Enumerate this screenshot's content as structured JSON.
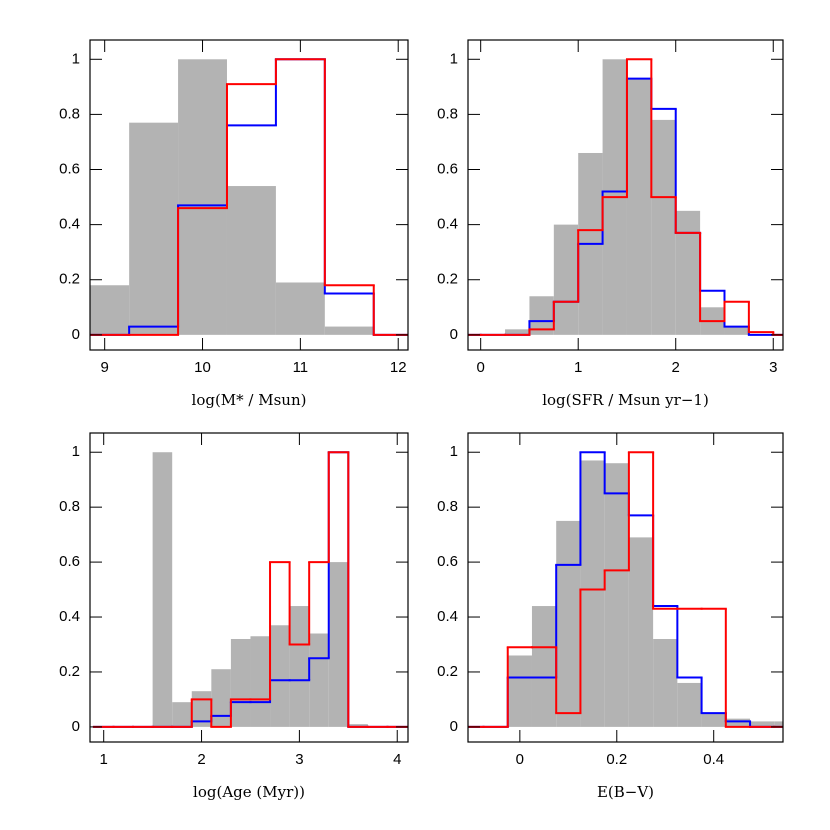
{
  "chart_data": [
    {
      "type": "histogram",
      "xlabel": "log(M* / Msun)",
      "bins": [
        8.75,
        9.25,
        9.75,
        10.25,
        10.75,
        11.25,
        11.75,
        12.25
      ],
      "series": [
        {
          "color": "#b3b3b3",
          "values": [
            0.18,
            0.77,
            1.0,
            0.54,
            0.19,
            0.03,
            0
          ]
        },
        {
          "color": "#0000ff",
          "values": [
            0,
            0.03,
            0.47,
            0.76,
            1.0,
            0.15,
            0
          ]
        },
        {
          "color": "#ff0000",
          "values": [
            0,
            0,
            0.46,
            0.91,
            1.0,
            0.18,
            0
          ]
        }
      ],
      "xlim": [
        8.85,
        12.1
      ],
      "xticks": [
        9,
        10,
        11,
        12
      ],
      "ylim": [
        -0.055,
        1.07
      ],
      "yticks": [
        0,
        0.2,
        0.4,
        0.6,
        0.8,
        1
      ]
    },
    {
      "type": "histogram",
      "xlabel": "log(SFR / Msun yr−1)",
      "bins": [
        -0.25,
        0,
        0.25,
        0.5,
        0.75,
        1.0,
        1.25,
        1.5,
        1.75,
        2.0,
        2.25,
        2.5,
        2.75,
        3.0,
        3.25
      ],
      "series": [
        {
          "color": "#b3b3b3",
          "values": [
            0,
            0,
            0.02,
            0.14,
            0.4,
            0.66,
            1.0,
            0.93,
            0.78,
            0.45,
            0.1,
            0.03,
            0,
            0
          ]
        },
        {
          "color": "#0000ff",
          "values": [
            0,
            0,
            0,
            0.05,
            0.12,
            0.33,
            0.52,
            0.93,
            0.82,
            0.37,
            0.16,
            0.03,
            0,
            0
          ]
        },
        {
          "color": "#ff0000",
          "values": [
            0,
            0,
            0,
            0.02,
            0.12,
            0.38,
            0.5,
            1.0,
            0.5,
            0.37,
            0.05,
            0.12,
            0.01,
            0
          ]
        }
      ],
      "xlim": [
        -0.13,
        3.1
      ],
      "xticks": [
        0,
        1,
        2,
        3
      ],
      "ylim": [
        -0.055,
        1.07
      ],
      "yticks": [
        0,
        0.2,
        0.4,
        0.6,
        0.8,
        1
      ]
    },
    {
      "type": "histogram",
      "xlabel": "log(Age (Myr))",
      "bins": [
        0.9,
        1.1,
        1.3,
        1.5,
        1.7,
        1.9,
        2.1,
        2.3,
        2.5,
        2.7,
        2.9,
        3.1,
        3.3,
        3.5,
        3.7,
        3.9,
        4.1
      ],
      "series": [
        {
          "color": "#b3b3b3",
          "values": [
            0,
            0,
            0,
            1.0,
            0.09,
            0.13,
            0.21,
            0.32,
            0.33,
            0.37,
            0.44,
            0.34,
            0.6,
            0.01,
            0,
            0
          ]
        },
        {
          "color": "#0000ff",
          "values": [
            0,
            0,
            0,
            0,
            0,
            0.02,
            0.04,
            0.09,
            0.09,
            0.17,
            0.17,
            0.25,
            1.0,
            0,
            0,
            0
          ]
        },
        {
          "color": "#ff0000",
          "values": [
            0,
            0,
            0,
            0,
            0,
            0.1,
            0,
            0.1,
            0.1,
            0.6,
            0.3,
            0.6,
            1.0,
            0,
            0,
            0
          ]
        }
      ],
      "xlim": [
        0.86,
        4.11
      ],
      "xticks": [
        1,
        2,
        3,
        4
      ],
      "ylim": [
        -0.055,
        1.07
      ],
      "yticks": [
        0,
        0.2,
        0.4,
        0.6,
        0.8,
        1
      ]
    },
    {
      "type": "histogram",
      "xlabel": "E(B−V)",
      "bins": [
        -0.125,
        -0.075,
        -0.025,
        0.025,
        0.075,
        0.125,
        0.175,
        0.225,
        0.275,
        0.325,
        0.375,
        0.425,
        0.475,
        0.525,
        0.575
      ],
      "series": [
        {
          "color": "#b3b3b3",
          "values": [
            0,
            0,
            0.26,
            0.44,
            0.75,
            0.97,
            0.96,
            0.69,
            0.32,
            0.16,
            0.05,
            0.03,
            0.02,
            0.02
          ]
        },
        {
          "color": "#0000ff",
          "values": [
            0,
            0,
            0.18,
            0.18,
            0.59,
            1.0,
            0.85,
            0.77,
            0.44,
            0.18,
            0.05,
            0.02,
            0,
            0
          ]
        },
        {
          "color": "#ff0000",
          "values": [
            0,
            0,
            0.29,
            0.29,
            0.05,
            0.5,
            0.57,
            1.0,
            0.43,
            0.43,
            0.43,
            0,
            0,
            0
          ]
        }
      ],
      "xlim": [
        -0.107,
        0.543
      ],
      "xticks": [
        0,
        0.2,
        0.4
      ],
      "ylim": [
        -0.055,
        1.07
      ],
      "yticks": [
        0,
        0.2,
        0.4,
        0.6,
        0.8,
        1
      ]
    }
  ]
}
